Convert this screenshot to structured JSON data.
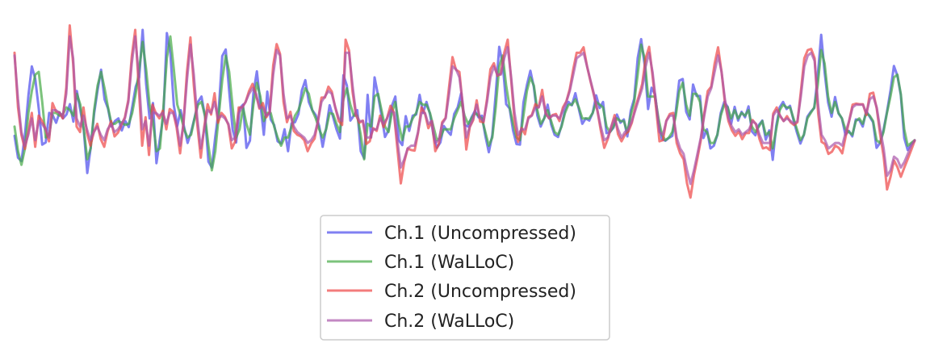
{
  "chart_data": {
    "type": "line",
    "title": "",
    "xlabel": "",
    "ylabel": "",
    "axes_visible": false,
    "grid": false,
    "legend_position": "bottom-center",
    "x_range": [
      0,
      330
    ],
    "y_range": [
      -1.6,
      1.9
    ],
    "series": [
      {
        "name": "Ch.1 (Uncompressed)",
        "color": "#5555ee",
        "opacity": 0.75,
        "values": [
          -0.32,
          -0.72,
          -0.78,
          -0.3,
          0.42,
          0.95,
          0.72,
          0.18,
          -0.48,
          -0.44,
          0.1,
          0.06,
          -0.08,
          0.11,
          0.0,
          0.07,
          0.26,
          -0.06,
          0.5,
          0.15,
          -0.22,
          -1.0,
          -0.54,
          0.09,
          0.52,
          0.89,
          0.35,
          0.18,
          -0.15,
          -0.05,
          0.0,
          -0.22,
          -0.05,
          -0.16,
          0.21,
          0.58,
          0.75,
          1.62,
          0.63,
          0.0,
          0.28,
          -0.82,
          -0.37,
          0.05,
          1.56,
          1.2,
          0.24,
          -0.14,
          0.15,
          -0.16,
          -0.45,
          -0.25,
          0.01,
          0.3,
          0.4,
          0.04,
          -0.79,
          -0.9,
          -0.33,
          0.17,
          1.14,
          1.26,
          0.5,
          -0.21,
          -0.44,
          0.18,
          0.25,
          -0.54,
          -0.41,
          0.46,
          0.86,
          0.27,
          -0.3,
          0.49,
          -0.02,
          -0.12,
          -0.42,
          -0.46,
          -0.2,
          -0.6,
          -0.09,
          -0.07,
          0.08,
          0.51,
          0.7,
          0.3,
          0.15,
          0.06,
          -0.14,
          -0.52,
          -0.18,
          0.24,
          0.03,
          -0.2,
          -0.37,
          0.79,
          0.6,
          -0.04,
          0.05,
          0.15,
          -0.6,
          -0.73,
          0.43,
          -0.35,
          0.75,
          0.42,
          0.05,
          -0.34,
          -0.22,
          0.23,
          0.4,
          -0.4,
          -0.49,
          0.04,
          -0.23,
          0.05,
          0.07,
          0.43,
          0.1,
          0.3,
          0.08,
          -0.3,
          -0.54,
          -0.44,
          -0.14,
          -0.23,
          -0.3,
          0.08,
          0.2,
          0.46,
          -0.12,
          -0.15,
          0.02,
          0.14,
          0.02,
          0.05,
          -0.32,
          -0.62,
          -0.31,
          0.46,
          1.31,
          1.0,
          0.26,
          0.18,
          -0.22,
          -0.47,
          -0.48,
          0.29,
          0.61,
          0.87,
          0.57,
          0.05,
          -0.15,
          0.0,
          0.25,
          -0.11,
          -0.3,
          -0.34,
          -0.13,
          0.15,
          0.3,
          0.24,
          0.46,
          0.17,
          -0.1,
          0.0,
          -0.04,
          0.1,
          0.42,
          0.19,
          0.3,
          -0.27,
          -0.25,
          -0.17,
          0.07,
          -0.08,
          -0.02,
          -0.33,
          0.14,
          0.36,
          1.1,
          1.45,
          0.98,
          0.17,
          0.56,
          0.44,
          -0.08,
          -0.38,
          -0.41,
          -0.36,
          -0.32,
          0.13,
          0.69,
          0.72,
          0.12,
          -0.02,
          0.62,
          0.41,
          0.41,
          -0.36,
          -0.2,
          -0.55,
          -0.5,
          -0.3,
          0.1,
          0.3,
          0.21,
          -0.1,
          0.21,
          -0.04,
          0.12,
          0.02,
          0.22,
          -0.24,
          -0.31,
          -0.12,
          -0.04,
          -0.39,
          -0.22,
          -0.76,
          -0.14,
          0.2,
          0.3,
          0.17,
          0.23,
          -0.03,
          -0.26,
          -0.46,
          -0.3,
          0.03,
          0.12,
          0.19,
          0.77,
          1.53,
          0.84,
          0.29,
          0.03,
          0.39,
          0.09,
          0.0,
          -0.3,
          -0.23,
          -0.33,
          -0.02,
          -0.03,
          -0.15,
          0.14,
          0.03,
          -0.07,
          -0.54,
          -0.45,
          -0.21,
          0.12,
          0.5,
          0.96,
          0.78,
          0.43,
          -0.36,
          -0.58,
          -0.47,
          -0.41
        ]
      },
      {
        "name": "Ch.1 (WaLLoC)",
        "color": "#44aa44",
        "opacity": 0.7,
        "values": [
          -0.15,
          -0.6,
          -0.85,
          -0.55,
          0.1,
          0.5,
          0.8,
          0.85,
          0.3,
          -0.35,
          -0.3,
          0.1,
          0.1,
          0.05,
          0.08,
          0.2,
          0.15,
          0.05,
          0.45,
          0.25,
          -0.2,
          -0.75,
          -0.55,
          0.15,
          0.6,
          0.85,
          0.55,
          0.2,
          -0.1,
          -0.1,
          -0.05,
          -0.08,
          -0.12,
          -0.1,
          0.1,
          0.45,
          0.9,
          1.4,
          0.9,
          0.25,
          -0.05,
          -0.6,
          -0.55,
          0.2,
          1.1,
          1.5,
          0.9,
          0.25,
          0.05,
          -0.2,
          -0.35,
          -0.3,
          0.0,
          0.25,
          0.3,
          0.05,
          -0.5,
          -0.95,
          -0.6,
          0.05,
          0.7,
          1.15,
          0.85,
          0.2,
          -0.35,
          -0.2,
          0.2,
          -0.1,
          -0.3,
          0.25,
          0.65,
          0.4,
          -0.05,
          0.1,
          0.1,
          -0.15,
          -0.35,
          -0.5,
          -0.35,
          -0.35,
          -0.15,
          0.05,
          0.15,
          0.35,
          0.55,
          0.45,
          0.15,
          0.0,
          -0.2,
          -0.35,
          -0.2,
          0.1,
          0.08,
          -0.1,
          -0.25,
          0.35,
          0.55,
          0.25,
          0.05,
          0.05,
          -0.3,
          -0.75,
          -0.1,
          -0.15,
          0.4,
          0.45,
          0.15,
          -0.15,
          -0.25,
          0.1,
          0.3,
          -0.1,
          -0.4,
          -0.15,
          -0.15,
          0.0,
          0.1,
          0.3,
          0.25,
          0.25,
          0.1,
          -0.15,
          -0.4,
          -0.35,
          -0.2,
          -0.2,
          -0.2,
          0.0,
          0.15,
          0.3,
          0.05,
          -0.1,
          0.0,
          0.1,
          0.05,
          0.0,
          -0.25,
          -0.5,
          -0.35,
          0.2,
          0.95,
          1.15,
          0.6,
          0.2,
          -0.1,
          -0.35,
          -0.4,
          0.05,
          0.5,
          0.75,
          0.6,
          0.15,
          -0.1,
          0.0,
          0.15,
          -0.05,
          -0.25,
          -0.3,
          -0.15,
          0.1,
          0.25,
          0.25,
          0.35,
          0.2,
          0.0,
          0.0,
          0.0,
          0.1,
          0.3,
          0.25,
          0.2,
          -0.15,
          -0.25,
          -0.15,
          0.0,
          -0.05,
          -0.05,
          -0.25,
          0.05,
          0.3,
          0.8,
          1.35,
          1.1,
          0.4,
          0.4,
          0.4,
          0.0,
          -0.3,
          -0.4,
          -0.35,
          -0.25,
          0.05,
          0.5,
          0.65,
          0.25,
          0.05,
          0.45,
          0.45,
          0.3,
          -0.2,
          -0.25,
          -0.45,
          -0.45,
          -0.3,
          0.05,
          0.25,
          0.2,
          0.0,
          0.15,
          0.0,
          0.1,
          0.05,
          0.15,
          -0.15,
          -0.25,
          -0.15,
          -0.05,
          -0.3,
          -0.25,
          -0.55,
          -0.2,
          0.15,
          0.25,
          0.2,
          0.2,
          0.0,
          -0.2,
          -0.4,
          -0.3,
          0.0,
          0.1,
          0.2,
          0.6,
          1.25,
          1.0,
          0.4,
          0.1,
          0.3,
          0.1,
          0.0,
          -0.2,
          -0.25,
          -0.3,
          -0.05,
          0.0,
          -0.1,
          0.1,
          0.05,
          -0.05,
          -0.4,
          -0.45,
          -0.25,
          0.1,
          0.4,
          0.75,
          0.8,
          0.45,
          -0.2,
          -0.5,
          -0.45,
          -0.4
        ]
      },
      {
        "name": "Ch.2 (Uncompressed)",
        "color": "#ee4444",
        "opacity": 0.7,
        "values": [
          1.2,
          0.2,
          -0.3,
          -0.56,
          -0.25,
          0.1,
          -0.52,
          0.05,
          -0.05,
          -0.19,
          -0.42,
          0.28,
          0.13,
          0.11,
          0.0,
          0.56,
          1.7,
          1.0,
          -0.15,
          -0.25,
          0.2,
          -0.27,
          -0.5,
          -0.25,
          -0.1,
          -0.38,
          -0.52,
          -0.24,
          -0.05,
          -0.33,
          -0.26,
          -0.12,
          0.02,
          0.34,
          1.13,
          1.62,
          0.6,
          -0.5,
          0.02,
          -0.67,
          0.25,
          0.09,
          0.0,
          0.14,
          -0.2,
          0.17,
          0.12,
          -0.17,
          -0.64,
          -0.08,
          0.85,
          1.48,
          0.6,
          -0.12,
          -0.72,
          -0.15,
          0.26,
          0.07,
          0.46,
          -0.08,
          0.1,
          0.03,
          -0.12,
          -0.55,
          -0.42,
          0.2,
          0.2,
          0.3,
          0.5,
          0.63,
          0.45,
          0.18,
          0.28,
          0.02,
          0.12,
          0.97,
          1.36,
          1.18,
          0.3,
          -0.07,
          0.12,
          -0.23,
          -0.3,
          -0.33,
          -0.4,
          -0.6,
          -0.46,
          -0.37,
          -0.05,
          0.38,
          0.38,
          0.58,
          0.49,
          0.2,
          -0.05,
          -0.12,
          1.44,
          1.24,
          0.49,
          0.06,
          -0.08,
          -0.04,
          -0.47,
          -0.42,
          -0.18,
          -0.23,
          0.05,
          -0.16,
          0.0,
          0.23,
          0.11,
          -0.55,
          -1.19,
          -0.8,
          -0.55,
          -0.58,
          -0.59,
          -0.27,
          0.2,
          0.09,
          -0.18,
          -0.05,
          -0.6,
          -0.47,
          -0.07,
          0.01,
          0.58,
          1.12,
          0.89,
          0.85,
          0.2,
          -0.57,
          -0.16,
          -0.03,
          0.33,
          -0.06,
          -0.07,
          0.36,
          0.9,
          1.01,
          0.78,
          0.82,
          1.2,
          1.44,
          0.7,
          -0.05,
          -0.43,
          -0.18,
          -0.29,
          0.02,
          0.06,
          0.26,
          0.2,
          0.52,
          0.09,
          0.0,
          0.06,
          0.08,
          -0.05,
          0.2,
          0.31,
          0.54,
          0.9,
          1.2,
          1.2,
          1.3,
          0.95,
          0.68,
          0.42,
          0.14,
          -0.22,
          -0.54,
          -0.38,
          -0.16,
          0.06,
          -0.29,
          -0.42,
          -0.3,
          -0.24,
          -0.08,
          0.2,
          0.4,
          0.63,
          1.1,
          1.31,
          0.78,
          0.2,
          -0.42,
          -0.4,
          -0.04,
          0.08,
          0.1,
          -0.45,
          -0.64,
          -0.75,
          -1.19,
          -1.45,
          -1.04,
          -0.73,
          -0.4,
          0.1,
          0.5,
          0.58,
          1.0,
          1.3,
          0.85,
          0.28,
          -0.05,
          -0.22,
          -0.32,
          -0.24,
          -0.38,
          -0.27,
          -0.27,
          -0.03,
          -0.11,
          -0.38,
          -0.55,
          -0.53,
          -0.58,
          0.09,
          0.2,
          0.04,
          -0.05,
          0.04,
          -0.07,
          -0.12,
          -0.07,
          0.49,
          1.1,
          1.25,
          1.27,
          1.1,
          0.1,
          -0.43,
          -0.47,
          -0.65,
          -0.61,
          -0.5,
          -0.54,
          -0.64,
          -0.33,
          -0.05,
          0.25,
          0.27,
          0.26,
          0.26,
          0.06,
          0.45,
          0.47,
          0.18,
          -0.3,
          -0.7,
          -1.3,
          -1.07,
          -0.77,
          -0.89,
          -1.07,
          -0.9,
          -0.74,
          -0.58,
          -0.41
        ]
      },
      {
        "name": "Ch.2 (WaLLoC)",
        "color": "#aa55aa",
        "opacity": 0.7,
        "values": [
          1.15,
          0.35,
          -0.25,
          -0.5,
          -0.3,
          0.0,
          -0.4,
          -0.05,
          -0.1,
          -0.2,
          -0.35,
          0.15,
          0.15,
          0.1,
          0.05,
          0.45,
          1.5,
          1.1,
          0.0,
          -0.15,
          0.05,
          -0.2,
          -0.4,
          -0.25,
          -0.15,
          -0.3,
          -0.4,
          -0.2,
          -0.1,
          -0.25,
          -0.2,
          -0.1,
          0.0,
          0.3,
          1.0,
          1.5,
          0.8,
          -0.2,
          -0.05,
          -0.5,
          0.1,
          0.1,
          0.05,
          0.1,
          -0.1,
          0.1,
          0.1,
          -0.1,
          -0.5,
          -0.1,
          0.7,
          1.35,
          0.8,
          0.0,
          -0.55,
          -0.2,
          0.15,
          0.1,
          0.3,
          0.0,
          0.05,
          0.0,
          -0.1,
          -0.4,
          -0.35,
          0.1,
          0.2,
          0.3,
          0.45,
          0.55,
          0.45,
          0.2,
          0.2,
          0.05,
          0.1,
          0.8,
          1.25,
          1.15,
          0.45,
          0.0,
          0.05,
          -0.15,
          -0.25,
          -0.3,
          -0.35,
          -0.45,
          -0.4,
          -0.3,
          -0.05,
          0.3,
          0.4,
          0.5,
          0.45,
          0.2,
          0.0,
          -0.05,
          1.2,
          1.2,
          0.6,
          0.1,
          -0.05,
          -0.05,
          -0.35,
          -0.35,
          -0.2,
          -0.2,
          0.0,
          -0.1,
          0.0,
          0.15,
          0.1,
          -0.4,
          -0.9,
          -0.75,
          -0.55,
          -0.5,
          -0.5,
          -0.25,
          0.1,
          0.1,
          -0.1,
          -0.05,
          -0.45,
          -0.4,
          -0.1,
          0.0,
          0.45,
          0.95,
          0.9,
          0.75,
          0.25,
          -0.35,
          -0.15,
          0.0,
          0.25,
          0.0,
          -0.05,
          0.3,
          0.75,
          0.95,
          0.8,
          0.8,
          1.1,
          1.3,
          0.75,
          0.1,
          -0.3,
          -0.2,
          -0.2,
          0.0,
          0.05,
          0.2,
          0.2,
          0.4,
          0.1,
          0.0,
          0.05,
          0.05,
          0.0,
          0.15,
          0.3,
          0.5,
          0.8,
          1.1,
          1.15,
          1.2,
          0.95,
          0.7,
          0.45,
          0.15,
          -0.15,
          -0.4,
          -0.35,
          -0.15,
          0.0,
          -0.2,
          -0.35,
          -0.25,
          -0.2,
          -0.05,
          0.15,
          0.35,
          0.55,
          0.95,
          1.2,
          0.85,
          0.3,
          -0.25,
          -0.3,
          -0.05,
          0.05,
          0.05,
          -0.35,
          -0.55,
          -0.65,
          -0.95,
          -1.2,
          -0.95,
          -0.65,
          -0.35,
          0.05,
          0.4,
          0.55,
          0.85,
          1.15,
          0.85,
          0.35,
          0.0,
          -0.15,
          -0.25,
          -0.2,
          -0.3,
          -0.25,
          -0.2,
          -0.05,
          -0.1,
          -0.3,
          -0.45,
          -0.45,
          -0.45,
          0.05,
          0.15,
          0.05,
          -0.05,
          0.0,
          -0.05,
          -0.1,
          -0.05,
          0.4,
          0.95,
          1.15,
          1.2,
          1.05,
          0.25,
          -0.3,
          -0.4,
          -0.55,
          -0.5,
          -0.45,
          -0.45,
          -0.5,
          -0.25,
          -0.05,
          0.2,
          0.25,
          0.25,
          0.25,
          0.1,
          0.35,
          0.4,
          0.2,
          -0.2,
          -0.55,
          -1.05,
          -0.95,
          -0.7,
          -0.75,
          -0.9,
          -0.8,
          -0.65,
          -0.5,
          -0.4
        ]
      }
    ]
  }
}
